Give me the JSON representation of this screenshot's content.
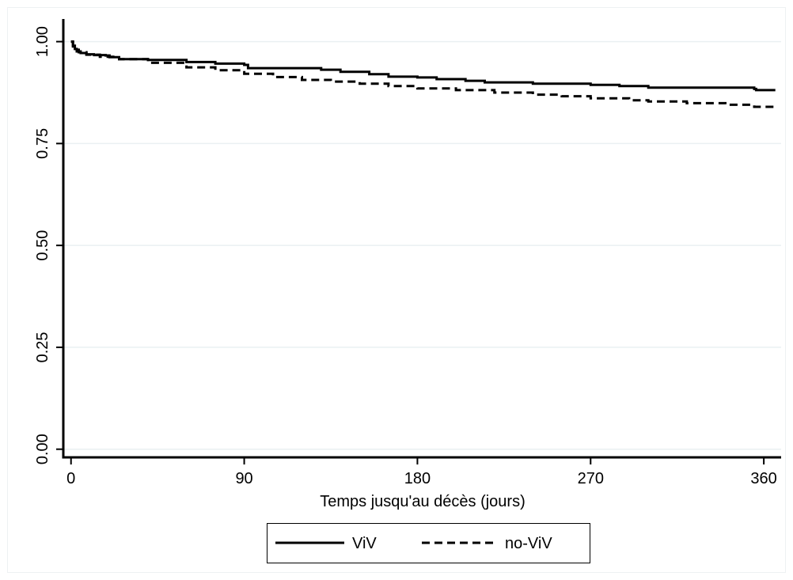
{
  "chart_data": {
    "type": "line",
    "title": "",
    "xlabel": "Temps jusqu'au décès (jours)",
    "ylabel": "",
    "xlim": [
      -4,
      369
    ],
    "ylim": [
      -0.02,
      1.04
    ],
    "xticks": [
      0,
      90,
      180,
      270,
      360
    ],
    "yticks": [
      0.0,
      0.25,
      0.5,
      0.75,
      1.0
    ],
    "xtick_labels": [
      "0",
      "90",
      "180",
      "270",
      "360"
    ],
    "ytick_labels": [
      "0.00",
      "0.25",
      "0.50",
      "0.75",
      "1.00"
    ],
    "grid": "horizontal",
    "legend_position": "bottom",
    "series": [
      {
        "name": "ViV",
        "style": "solid",
        "color": "#000000",
        "points": [
          [
            0,
            1.0
          ],
          [
            1,
            0.99
          ],
          [
            2,
            0.982
          ],
          [
            3,
            0.976
          ],
          [
            5,
            0.972
          ],
          [
            8,
            0.969
          ],
          [
            12,
            0.967
          ],
          [
            18,
            0.966
          ],
          [
            20,
            0.962
          ],
          [
            25,
            0.957
          ],
          [
            40,
            0.955
          ],
          [
            60,
            0.95
          ],
          [
            75,
            0.946
          ],
          [
            90,
            0.943
          ],
          [
            92,
            0.935
          ],
          [
            130,
            0.931
          ],
          [
            140,
            0.926
          ],
          [
            155,
            0.92
          ],
          [
            165,
            0.914
          ],
          [
            180,
            0.912
          ],
          [
            190,
            0.908
          ],
          [
            205,
            0.904
          ],
          [
            215,
            0.9
          ],
          [
            240,
            0.897
          ],
          [
            270,
            0.894
          ],
          [
            285,
            0.891
          ],
          [
            300,
            0.887
          ],
          [
            355,
            0.884
          ],
          [
            356,
            0.881
          ],
          [
            366,
            0.881
          ]
        ]
      },
      {
        "name": "no-ViV",
        "style": "dashed",
        "color": "#000000",
        "points": [
          [
            0,
            1.0
          ],
          [
            1,
            0.988
          ],
          [
            2,
            0.98
          ],
          [
            4,
            0.974
          ],
          [
            8,
            0.968
          ],
          [
            15,
            0.963
          ],
          [
            25,
            0.957
          ],
          [
            40,
            0.948
          ],
          [
            60,
            0.937
          ],
          [
            75,
            0.93
          ],
          [
            90,
            0.921
          ],
          [
            105,
            0.913
          ],
          [
            120,
            0.906
          ],
          [
            135,
            0.902
          ],
          [
            150,
            0.897
          ],
          [
            165,
            0.891
          ],
          [
            180,
            0.885
          ],
          [
            200,
            0.881
          ],
          [
            220,
            0.875
          ],
          [
            240,
            0.87
          ],
          [
            255,
            0.866
          ],
          [
            270,
            0.861
          ],
          [
            290,
            0.856
          ],
          [
            300,
            0.853
          ],
          [
            320,
            0.849
          ],
          [
            340,
            0.845
          ],
          [
            355,
            0.84
          ],
          [
            366,
            0.836
          ]
        ]
      }
    ]
  }
}
